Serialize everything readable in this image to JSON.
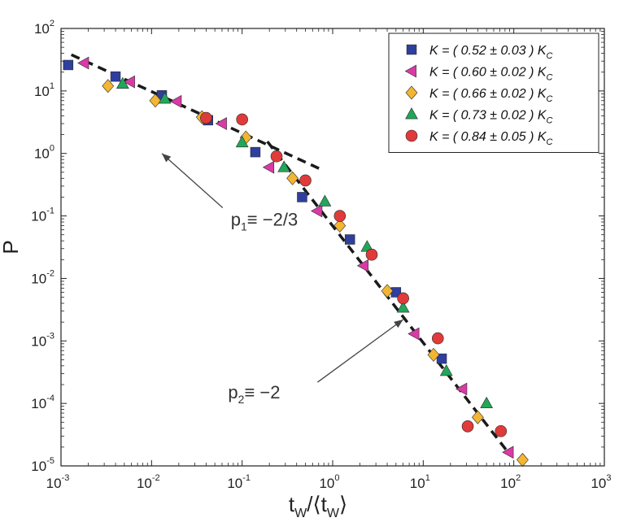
{
  "chart_data": {
    "type": "scatter",
    "title": "",
    "xlabel": "t_W/⟨t_W⟩",
    "xlabel_parts": {
      "a": "t",
      "a_sub": "W",
      "b": "/⟨t",
      "b_sub": "W",
      "c": "⟩"
    },
    "ylabel": "P",
    "xscale": "log",
    "yscale": "log",
    "xlim": [
      0.001,
      1000
    ],
    "ylim": [
      1e-05,
      100
    ],
    "x_ticks": [
      {
        "base": "10",
        "exp": "-3",
        "value": 0.001
      },
      {
        "base": "10",
        "exp": "-2",
        "value": 0.01
      },
      {
        "base": "10",
        "exp": "-1",
        "value": 0.1
      },
      {
        "base": "10",
        "exp": "0",
        "value": 1
      },
      {
        "base": "10",
        "exp": "1",
        "value": 10
      },
      {
        "base": "10",
        "exp": "2",
        "value": 100
      },
      {
        "base": "10",
        "exp": "3",
        "value": 1000
      }
    ],
    "y_ticks": [
      {
        "base": "10",
        "exp": "-5",
        "value": 1e-05
      },
      {
        "base": "10",
        "exp": "-4",
        "value": 0.0001
      },
      {
        "base": "10",
        "exp": "-3",
        "value": 0.001
      },
      {
        "base": "10",
        "exp": "-2",
        "value": 0.01
      },
      {
        "base": "10",
        "exp": "-1",
        "value": 0.1
      },
      {
        "base": "10",
        "exp": "0",
        "value": 1
      },
      {
        "base": "10",
        "exp": "1",
        "value": 10
      },
      {
        "base": "10",
        "exp": "2",
        "value": 100
      }
    ],
    "grid": false,
    "legend_position": "top-right",
    "series": [
      {
        "name": "K = ( 0.52 ± 0.03 ) K_C",
        "legend": {
          "main": "K = ( 0.52 ± 0.03 ) K",
          "sub": "C"
        },
        "marker": "square",
        "color": "#2e3f9e",
        "points": [
          [
            0.0012,
            26
          ],
          [
            0.004,
            17
          ],
          [
            0.013,
            8.5
          ],
          [
            0.042,
            3.4
          ],
          [
            0.14,
            1.05
          ],
          [
            0.46,
            0.2
          ],
          [
            1.55,
            0.042
          ],
          [
            5.0,
            0.006
          ],
          [
            16,
            0.00052
          ]
        ]
      },
      {
        "name": "K = ( 0.60 ± 0.02 ) K_C",
        "legend": {
          "main": "K = ( 0.60 ± 0.02 ) K",
          "sub": "C"
        },
        "marker": "triangle-left",
        "color": "#d93aa6",
        "points": [
          [
            0.0018,
            28
          ],
          [
            0.0058,
            14
          ],
          [
            0.019,
            6.8
          ],
          [
            0.06,
            3.0
          ],
          [
            0.2,
            0.6
          ],
          [
            0.68,
            0.12
          ],
          [
            2.2,
            0.016
          ],
          [
            8.0,
            0.0013
          ],
          [
            27,
            0.00017
          ],
          [
            88,
            1.65e-05
          ]
        ]
      },
      {
        "name": "K = ( 0.66 ± 0.02 ) K_C",
        "legend": {
          "main": "K = ( 0.66 ± 0.02 ) K",
          "sub": "C"
        },
        "marker": "diamond",
        "color": "#f2b632",
        "points": [
          [
            0.0033,
            12
          ],
          [
            0.011,
            7.0
          ],
          [
            0.036,
            3.8
          ],
          [
            0.11,
            1.8
          ],
          [
            0.36,
            0.4
          ],
          [
            1.2,
            0.07
          ],
          [
            4.0,
            0.0063
          ],
          [
            13,
            0.0006
          ],
          [
            40,
            6e-05
          ],
          [
            125,
            1.25e-05
          ]
        ]
      },
      {
        "name": "K = ( 0.73 ± 0.02 ) K_C",
        "legend": {
          "main": "K = ( 0.73 ± 0.02 ) K",
          "sub": "C"
        },
        "marker": "triangle-up",
        "color": "#22a65a",
        "points": [
          [
            0.0048,
            13
          ],
          [
            0.014,
            7.5
          ],
          [
            0.1,
            1.5
          ],
          [
            0.29,
            0.6
          ],
          [
            0.82,
            0.17
          ],
          [
            2.4,
            0.032
          ],
          [
            6.0,
            0.0034
          ],
          [
            18,
            0.00033
          ],
          [
            50,
            0.0001
          ]
        ]
      },
      {
        "name": "K = ( 0.84 ± 0.05 ) K_C",
        "legend": {
          "main": "K = ( 0.84 ± 0.05 ) K",
          "sub": "C"
        },
        "marker": "circle",
        "color": "#e03a3a",
        "points": [
          [
            0.04,
            3.7
          ],
          [
            0.1,
            3.5
          ],
          [
            0.24,
            0.9
          ],
          [
            0.5,
            0.37
          ],
          [
            1.2,
            0.1
          ],
          [
            2.7,
            0.024
          ],
          [
            6.0,
            0.0048
          ],
          [
            14.5,
            0.0011
          ],
          [
            31,
            4.3e-05
          ],
          [
            72,
            3.6e-05
          ]
        ]
      }
    ],
    "fit_lines": [
      {
        "label_main": "p",
        "label_sub": "1",
        "label_rest": "≡ −2/3",
        "points": [
          [
            0.0013,
            38
          ],
          [
            0.8,
            0.53
          ]
        ]
      },
      {
        "label_main": "p",
        "label_sub": "2",
        "label_rest": "≡ −2",
        "points": [
          [
            0.19,
            1.55
          ],
          [
            90,
            1.53e-05
          ]
        ]
      }
    ],
    "annotations": [
      {
        "text_main": "p",
        "text_sub": "1",
        "text_rest": "≡ −2/3",
        "label_at": [
          0.075,
          0.07
        ],
        "arrow_tip": [
          0.013,
          1.0
        ]
      },
      {
        "text_main": "p",
        "text_sub": "2",
        "text_rest": "≡ −2",
        "label_at": [
          0.07,
          0.00012
        ],
        "arrow_tip": [
          6.0,
          0.0022
        ]
      }
    ]
  }
}
